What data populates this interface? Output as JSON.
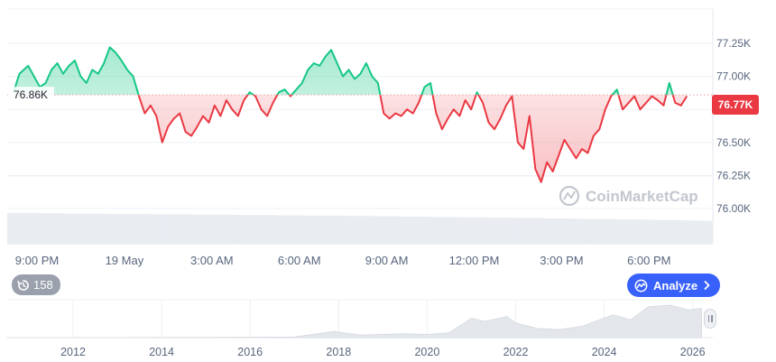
{
  "chart_data": {
    "type": "line",
    "ylim": [
      75.8,
      77.4
    ],
    "y_ticks": [
      "77.25K",
      "77.00K",
      "76.75K",
      "76.50K",
      "76.25K",
      "76.00K"
    ],
    "y_tick_values": [
      77.25,
      77.0,
      76.75,
      76.5,
      76.25,
      76.0
    ],
    "x_ticks": [
      "9:00 PM",
      "19 May",
      "3:00 AM",
      "6:00 AM",
      "9:00 AM",
      "12:00 PM",
      "3:00 PM",
      "6:00 PM"
    ],
    "x_tick_hours": [
      0,
      3,
      6,
      9,
      12,
      15,
      18,
      21
    ],
    "reference_value": 76.86,
    "reference_label": "76.86K",
    "current_value": 76.77,
    "current_label": "76.77K",
    "series": [
      {
        "x": [
          -0.4,
          -0.2,
          0.1,
          0.3,
          0.5,
          0.7,
          0.9,
          1.1,
          1.3,
          1.5,
          1.7,
          1.9,
          2.1,
          2.3,
          2.5,
          2.7,
          2.9,
          3.1,
          3.3,
          3.5,
          3.7,
          3.9,
          4.1,
          4.3,
          4.5,
          4.7,
          4.9,
          5.1,
          5.3,
          5.5,
          5.7,
          5.9,
          6.1,
          6.3,
          6.5,
          6.7,
          6.9,
          7.1,
          7.3,
          7.5,
          7.7,
          7.9,
          8.1,
          8.3,
          8.5,
          8.7,
          8.9,
          9.1,
          9.3,
          9.5,
          9.7,
          9.9,
          10.1,
          10.3,
          10.5,
          10.7,
          10.9,
          11.1,
          11.3,
          11.5,
          11.7,
          11.9,
          12.1,
          12.3,
          12.5,
          12.7,
          12.9,
          13.1,
          13.3,
          13.5,
          13.7,
          13.9,
          14.1,
          14.3,
          14.5,
          14.7,
          14.9,
          15.1,
          15.3,
          15.5,
          15.7,
          15.9,
          16.1,
          16.3,
          16.5,
          16.7,
          16.9,
          17.1,
          17.3,
          17.5,
          17.7,
          17.9,
          18.1,
          18.3,
          18.5,
          18.7,
          18.9,
          19.1,
          19.3,
          19.5,
          19.7,
          19.9,
          20.1,
          20.3,
          20.5,
          20.7,
          20.9,
          21.1,
          21.3,
          21.5,
          21.7,
          21.9,
          22.1,
          22.3,
          22.5,
          22.7
        ],
        "values": [
          76.88,
          77.02,
          77.08,
          77.0,
          76.92,
          76.95,
          77.05,
          77.1,
          77.02,
          77.08,
          77.12,
          77.0,
          76.95,
          77.05,
          77.02,
          77.1,
          77.22,
          77.18,
          77.12,
          77.05,
          77.0,
          76.85,
          76.72,
          76.78,
          76.7,
          76.5,
          76.62,
          76.68,
          76.72,
          76.58,
          76.55,
          76.62,
          76.7,
          76.65,
          76.78,
          76.7,
          76.82,
          76.75,
          76.7,
          76.82,
          76.88,
          76.85,
          76.75,
          76.7,
          76.8,
          76.88,
          76.9,
          76.85,
          76.9,
          76.95,
          77.05,
          77.1,
          77.08,
          77.15,
          77.2,
          77.1,
          77.0,
          77.05,
          76.98,
          77.02,
          77.1,
          77.0,
          76.95,
          76.72,
          76.68,
          76.72,
          76.7,
          76.75,
          76.72,
          76.8,
          76.92,
          76.95,
          76.72,
          76.6,
          76.68,
          76.75,
          76.7,
          76.82,
          76.75,
          76.88,
          76.8,
          76.65,
          76.6,
          76.68,
          76.78,
          76.85,
          76.5,
          76.45,
          76.7,
          76.3,
          76.2,
          76.35,
          76.28,
          76.4,
          76.52,
          76.45,
          76.38,
          76.45,
          76.42,
          76.55,
          76.6,
          76.75,
          76.85,
          76.9,
          76.75,
          76.8,
          76.85,
          76.75,
          76.8,
          76.85,
          76.82,
          76.78,
          76.95,
          76.8,
          76.78,
          76.85
        ]
      }
    ],
    "volume": {
      "values": [
        0.9,
        0.9,
        0.89,
        0.89,
        0.88,
        0.88,
        0.88,
        0.87,
        0.87,
        0.87,
        0.86,
        0.86,
        0.86,
        0.85,
        0.85,
        0.85,
        0.84,
        0.84,
        0.84,
        0.83,
        0.83,
        0.82,
        0.82,
        0.82,
        0.81,
        0.81,
        0.8,
        0.8,
        0.79,
        0.79,
        0.78,
        0.78,
        0.77,
        0.77,
        0.76,
        0.76,
        0.75,
        0.75,
        0.74,
        0.74,
        0.73,
        0.72,
        0.72,
        0.71,
        0.71,
        0.7,
        0.69,
        0.69,
        0.68,
        0.67
      ]
    },
    "navigator": {
      "x_ticks": [
        "2012",
        "2014",
        "2016",
        "2018",
        "2020",
        "2022",
        "2024",
        "2026"
      ],
      "x_tick_years": [
        2012,
        2014,
        2016,
        2018,
        2020,
        2022,
        2024,
        2026
      ],
      "years": [
        2010.5,
        2011,
        2012,
        2013,
        2014,
        2015,
        2016,
        2017,
        2017.9,
        2018.5,
        2019,
        2019.5,
        2020,
        2020.5,
        2021,
        2021.3,
        2021.8,
        2022,
        2022.5,
        2023,
        2023.5,
        2024,
        2024.2,
        2024.6,
        2025,
        2025.5,
        2025.9,
        2026.2
      ],
      "values": [
        0,
        0,
        0,
        0,
        0.005,
        0.005,
        0.01,
        0.02,
        0.19,
        0.08,
        0.1,
        0.12,
        0.1,
        0.15,
        0.6,
        0.5,
        0.65,
        0.45,
        0.28,
        0.25,
        0.35,
        0.6,
        0.7,
        0.55,
        0.95,
        1.0,
        0.85,
        0.9
      ]
    }
  },
  "watermark": "CoinMarketCap",
  "history_button": {
    "count": "158",
    "icon": "history-icon"
  },
  "analyze_button": {
    "label": "Analyze",
    "icon": "analyze-icon"
  },
  "colors": {
    "up": "#16c784",
    "down": "#ea3943",
    "grid": "#eff2f5",
    "axis_text": "#58667e",
    "accent": "#3861fb"
  }
}
